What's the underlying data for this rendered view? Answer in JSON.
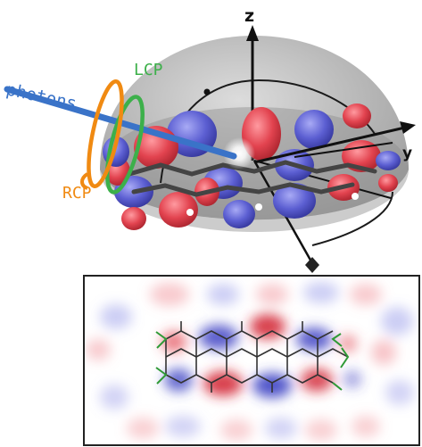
{
  "labels": {
    "axis_z": "z",
    "axis_y": "y",
    "photons": "photons",
    "lcp": "LCP",
    "rcp": "RCP"
  },
  "colors": {
    "orbital_positive": "#e2434f",
    "orbital_negative": "#5c5fd2",
    "dome": "#9a9a9a",
    "photon_beam": "#3a73c8",
    "lcp_ring": "#3cb04a",
    "rcp_ring": "#f08a12",
    "bond_highlight": "#2f9a36",
    "bond": "#333333"
  },
  "icons": {
    "z_axis_arrow": "arrow-up-icon",
    "y_axis_arrow": "arrow-right-icon",
    "detector_marker": "diamond-icon"
  }
}
